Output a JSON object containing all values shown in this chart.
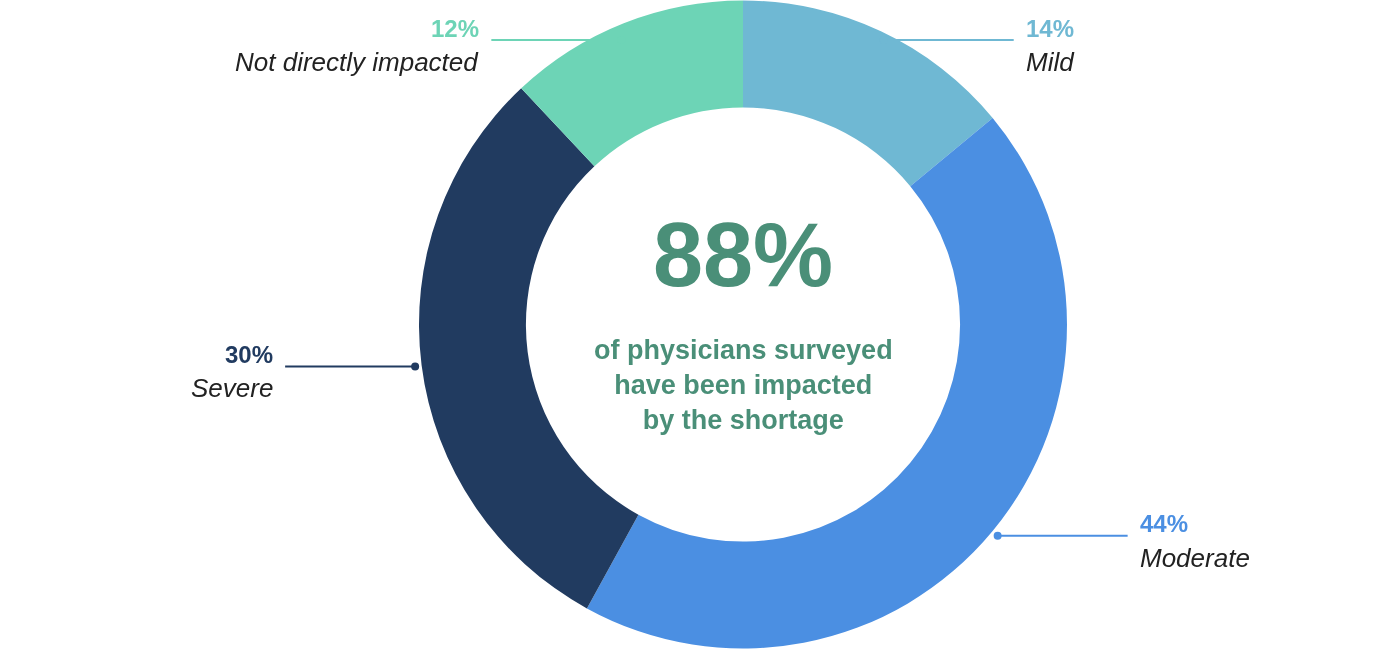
{
  "chart_data": {
    "type": "donut",
    "categories": [
      "Mild",
      "Moderate",
      "Severe",
      "Not directly impacted"
    ],
    "values": [
      14,
      44,
      30,
      12
    ],
    "colors": [
      "#6fb8d3",
      "#4b8fe2",
      "#213b60",
      "#6dd4b6"
    ],
    "value_labels": [
      "14%",
      "44%",
      "30%",
      "12%"
    ],
    "annotations": [
      "88%",
      "of physicians surveyed\nhave been impacted\nby the shortage"
    ]
  }
}
